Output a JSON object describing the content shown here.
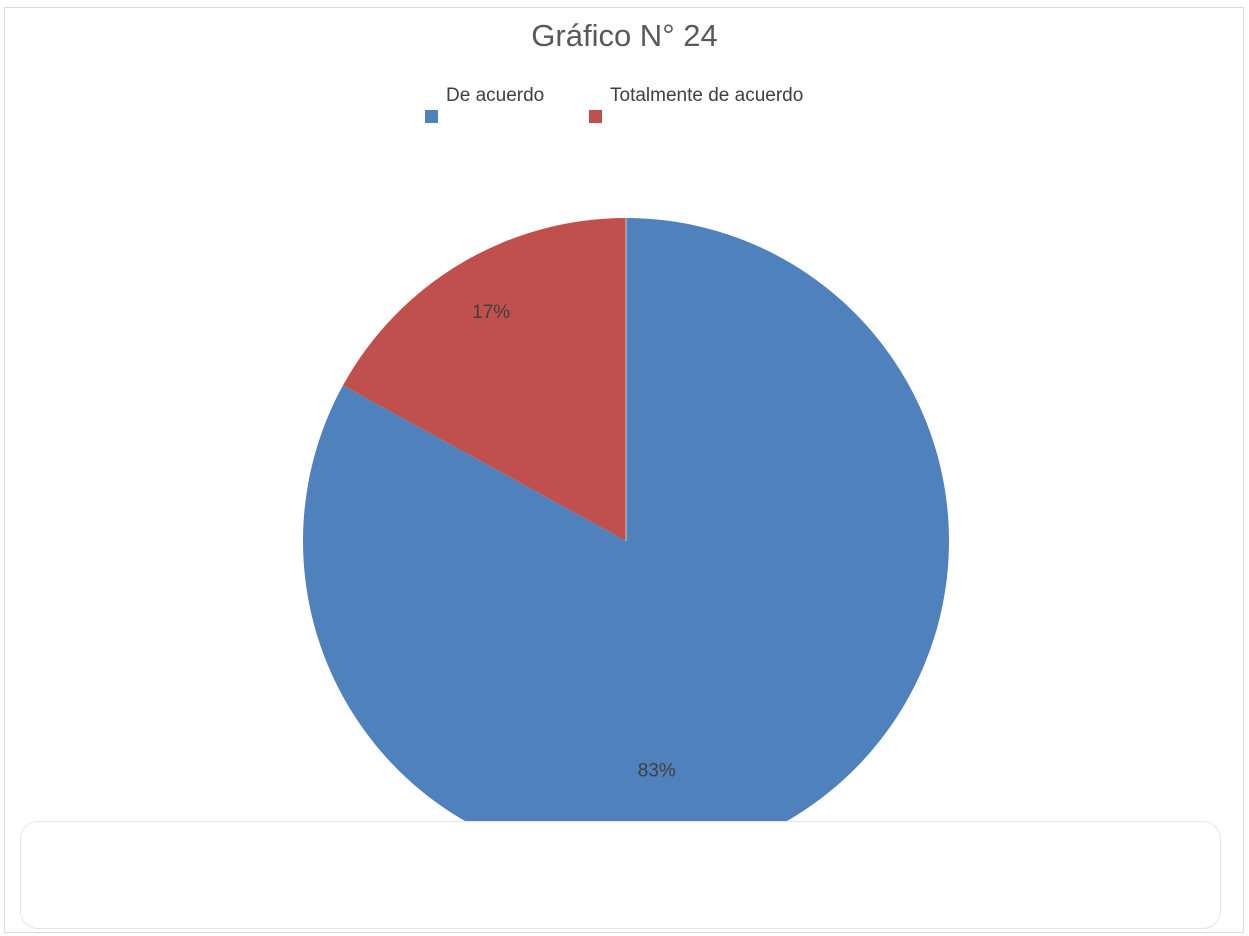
{
  "chart_data": {
    "type": "pie",
    "title": "Gráfico N° 24",
    "categories": [
      "De acuerdo",
      "Totalmente de acuerdo"
    ],
    "values": [
      83,
      17
    ],
    "data_labels": [
      "83%",
      "17%"
    ],
    "colors": [
      "#4f81bd",
      "#c0504d"
    ],
    "legend_position": "top"
  }
}
